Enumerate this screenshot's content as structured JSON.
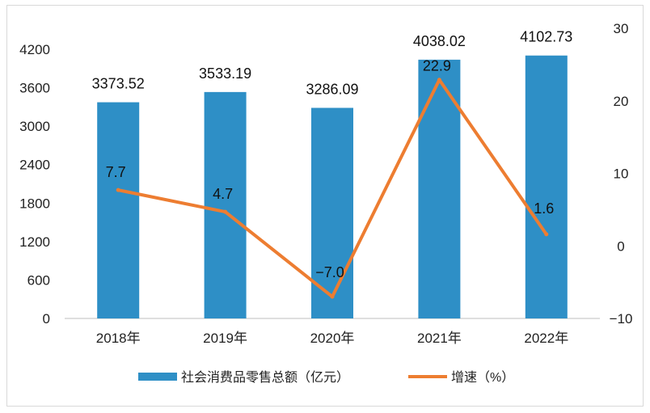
{
  "chart_data": {
    "type": "bar",
    "categories": [
      "2018年",
      "2019年",
      "2020年",
      "2021年",
      "2022年"
    ],
    "series": [
      {
        "name": "社会消费品零售总额（亿元）",
        "type": "bar",
        "axis": "left",
        "values": [
          3373.52,
          3533.19,
          3286.09,
          4038.02,
          4102.73
        ],
        "labels": [
          "3373.52",
          "3533.19",
          "3286.09",
          "4038.02",
          "4102.73"
        ],
        "color": "#2e8fc6"
      },
      {
        "name": "增速（%）",
        "type": "line",
        "axis": "right",
        "values": [
          7.7,
          4.7,
          -7.0,
          22.9,
          1.6
        ],
        "labels": [
          "7.7",
          "4.7",
          "−7.0",
          "22.9",
          "1.6"
        ],
        "color": "#ed7d31"
      }
    ],
    "left_axis": {
      "ylim": [
        0,
        4200
      ],
      "ticks": [
        "0",
        "600",
        "1200",
        "1800",
        "2400",
        "3000",
        "3600",
        "4200"
      ]
    },
    "right_axis": {
      "ylim": [
        -10,
        30
      ],
      "ticks": [
        "−10",
        "0",
        "10",
        "20",
        "30"
      ]
    },
    "grid": false,
    "legend_position": "bottom"
  }
}
